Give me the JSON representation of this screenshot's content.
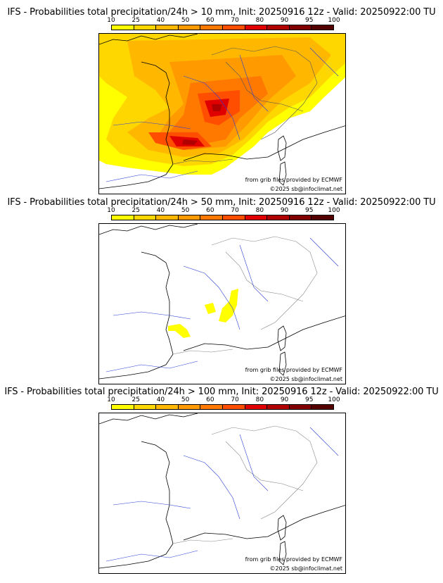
{
  "colorbar": {
    "labels": [
      "10",
      "25",
      "40",
      "50",
      "60",
      "70",
      "80",
      "90",
      "95",
      "100"
    ],
    "colors": [
      "#ffff00",
      "#ffd700",
      "#ffb700",
      "#ff9a00",
      "#ff7800",
      "#ff4e00",
      "#e00000",
      "#b00000",
      "#800000",
      "#550000"
    ]
  },
  "panels": [
    {
      "title": "IFS - Probabilities total precipitation/24h > 10 mm, Init: 20250916 12z - Valid: 20250922:00 TU",
      "threshold_mm": 10
    },
    {
      "title": "IFS - Probabilities total precipitation/24h > 50 mm, Init: 20250916 12z - Valid: 20250922:00 TU",
      "threshold_mm": 50
    },
    {
      "title": "IFS - Probabilities total precipitation/24h > 100 mm, Init: 20250916 12z - Valid: 20250922:00 TU",
      "threshold_mm": 100
    }
  ],
  "credits": {
    "source": "from grib files provided by ECMWF",
    "copyright": "©2025 sb@infoclimat.net"
  }
}
